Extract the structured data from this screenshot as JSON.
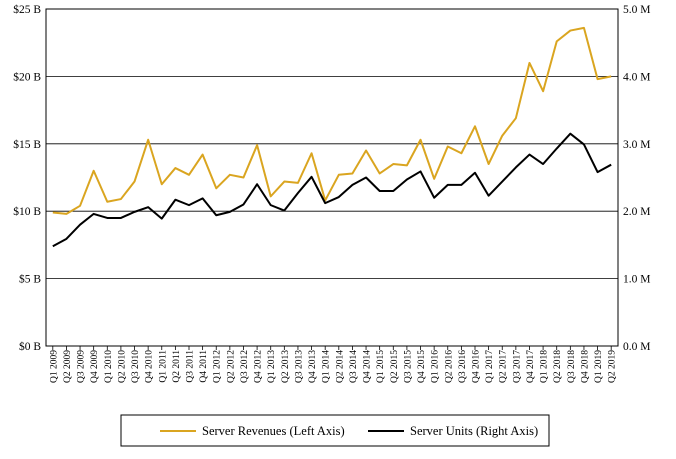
{
  "chart_data": {
    "type": "line",
    "title": "",
    "xlabel": "",
    "ylabel": "",
    "categories": [
      "Q1 2009",
      "Q2 2009",
      "Q3 2009",
      "Q4 2009",
      "Q1 2010",
      "Q2 2010",
      "Q3 2010",
      "Q4 2010",
      "Q1 2011",
      "Q2 2011",
      "Q3 2011",
      "Q4 2011",
      "Q1 2012",
      "Q2 2012",
      "Q3 2012",
      "Q4 2012",
      "Q1 2013",
      "Q2 2013",
      "Q3 2013",
      "Q4 2013",
      "Q1 2014",
      "Q2 2014",
      "Q3 2014",
      "Q4 2014",
      "Q1 2015",
      "Q2 2015",
      "Q3 2015",
      "Q4 2015",
      "Q1 2016",
      "Q2 2016",
      "Q3 2016",
      "Q4 2016",
      "Q1 2017",
      "Q2 2017",
      "Q3 2017",
      "Q4 2017",
      "Q1 2018",
      "Q2 2018",
      "Q3 2018",
      "Q4 2018",
      "Q1 2019",
      "Q2 2019"
    ],
    "left_axis": {
      "ylim": [
        0,
        25
      ],
      "ticks": [
        0,
        5,
        10,
        15,
        20,
        25
      ],
      "tick_labels": [
        "$0 B",
        "$5 B",
        "$10 B",
        "$15 B",
        "$20 B",
        "$25 B"
      ]
    },
    "right_axis": {
      "ylim": [
        0,
        5
      ],
      "ticks": [
        0,
        1,
        2,
        3,
        4,
        5
      ],
      "tick_labels": [
        "0.0 M",
        "1.0 M",
        "2.0 M",
        "3.0 M",
        "4.0 M",
        "5.0 M"
      ]
    },
    "grid": "horizontal",
    "legend_position": "bottom",
    "series": [
      {
        "name": "Server Revenues (Left Axis)",
        "axis": "left",
        "color": "#DAA520",
        "values": [
          9.9,
          9.8,
          10.4,
          13.0,
          10.7,
          10.9,
          12.2,
          15.3,
          12.0,
          13.2,
          12.7,
          14.2,
          11.7,
          12.7,
          12.5,
          14.9,
          11.1,
          12.2,
          12.1,
          14.3,
          10.8,
          12.7,
          12.8,
          14.5,
          12.8,
          13.5,
          13.4,
          15.3,
          12.4,
          14.8,
          14.3,
          16.3,
          13.5,
          15.6,
          16.9,
          21.0,
          18.9,
          22.6,
          23.4,
          23.6,
          19.8,
          20.0
        ]
      },
      {
        "name": "Server Units (Right Axis)",
        "axis": "right",
        "color": "#000000",
        "values": [
          1.48,
          1.59,
          1.8,
          1.96,
          1.9,
          1.9,
          1.99,
          2.06,
          1.89,
          2.17,
          2.09,
          2.19,
          1.94,
          1.99,
          2.1,
          2.4,
          2.09,
          2.01,
          2.27,
          2.51,
          2.12,
          2.21,
          2.39,
          2.5,
          2.3,
          2.3,
          2.47,
          2.59,
          2.2,
          2.39,
          2.39,
          2.57,
          2.23,
          2.44,
          2.65,
          2.84,
          2.7,
          2.93,
          3.15,
          2.99,
          2.58,
          2.69
        ]
      }
    ]
  }
}
